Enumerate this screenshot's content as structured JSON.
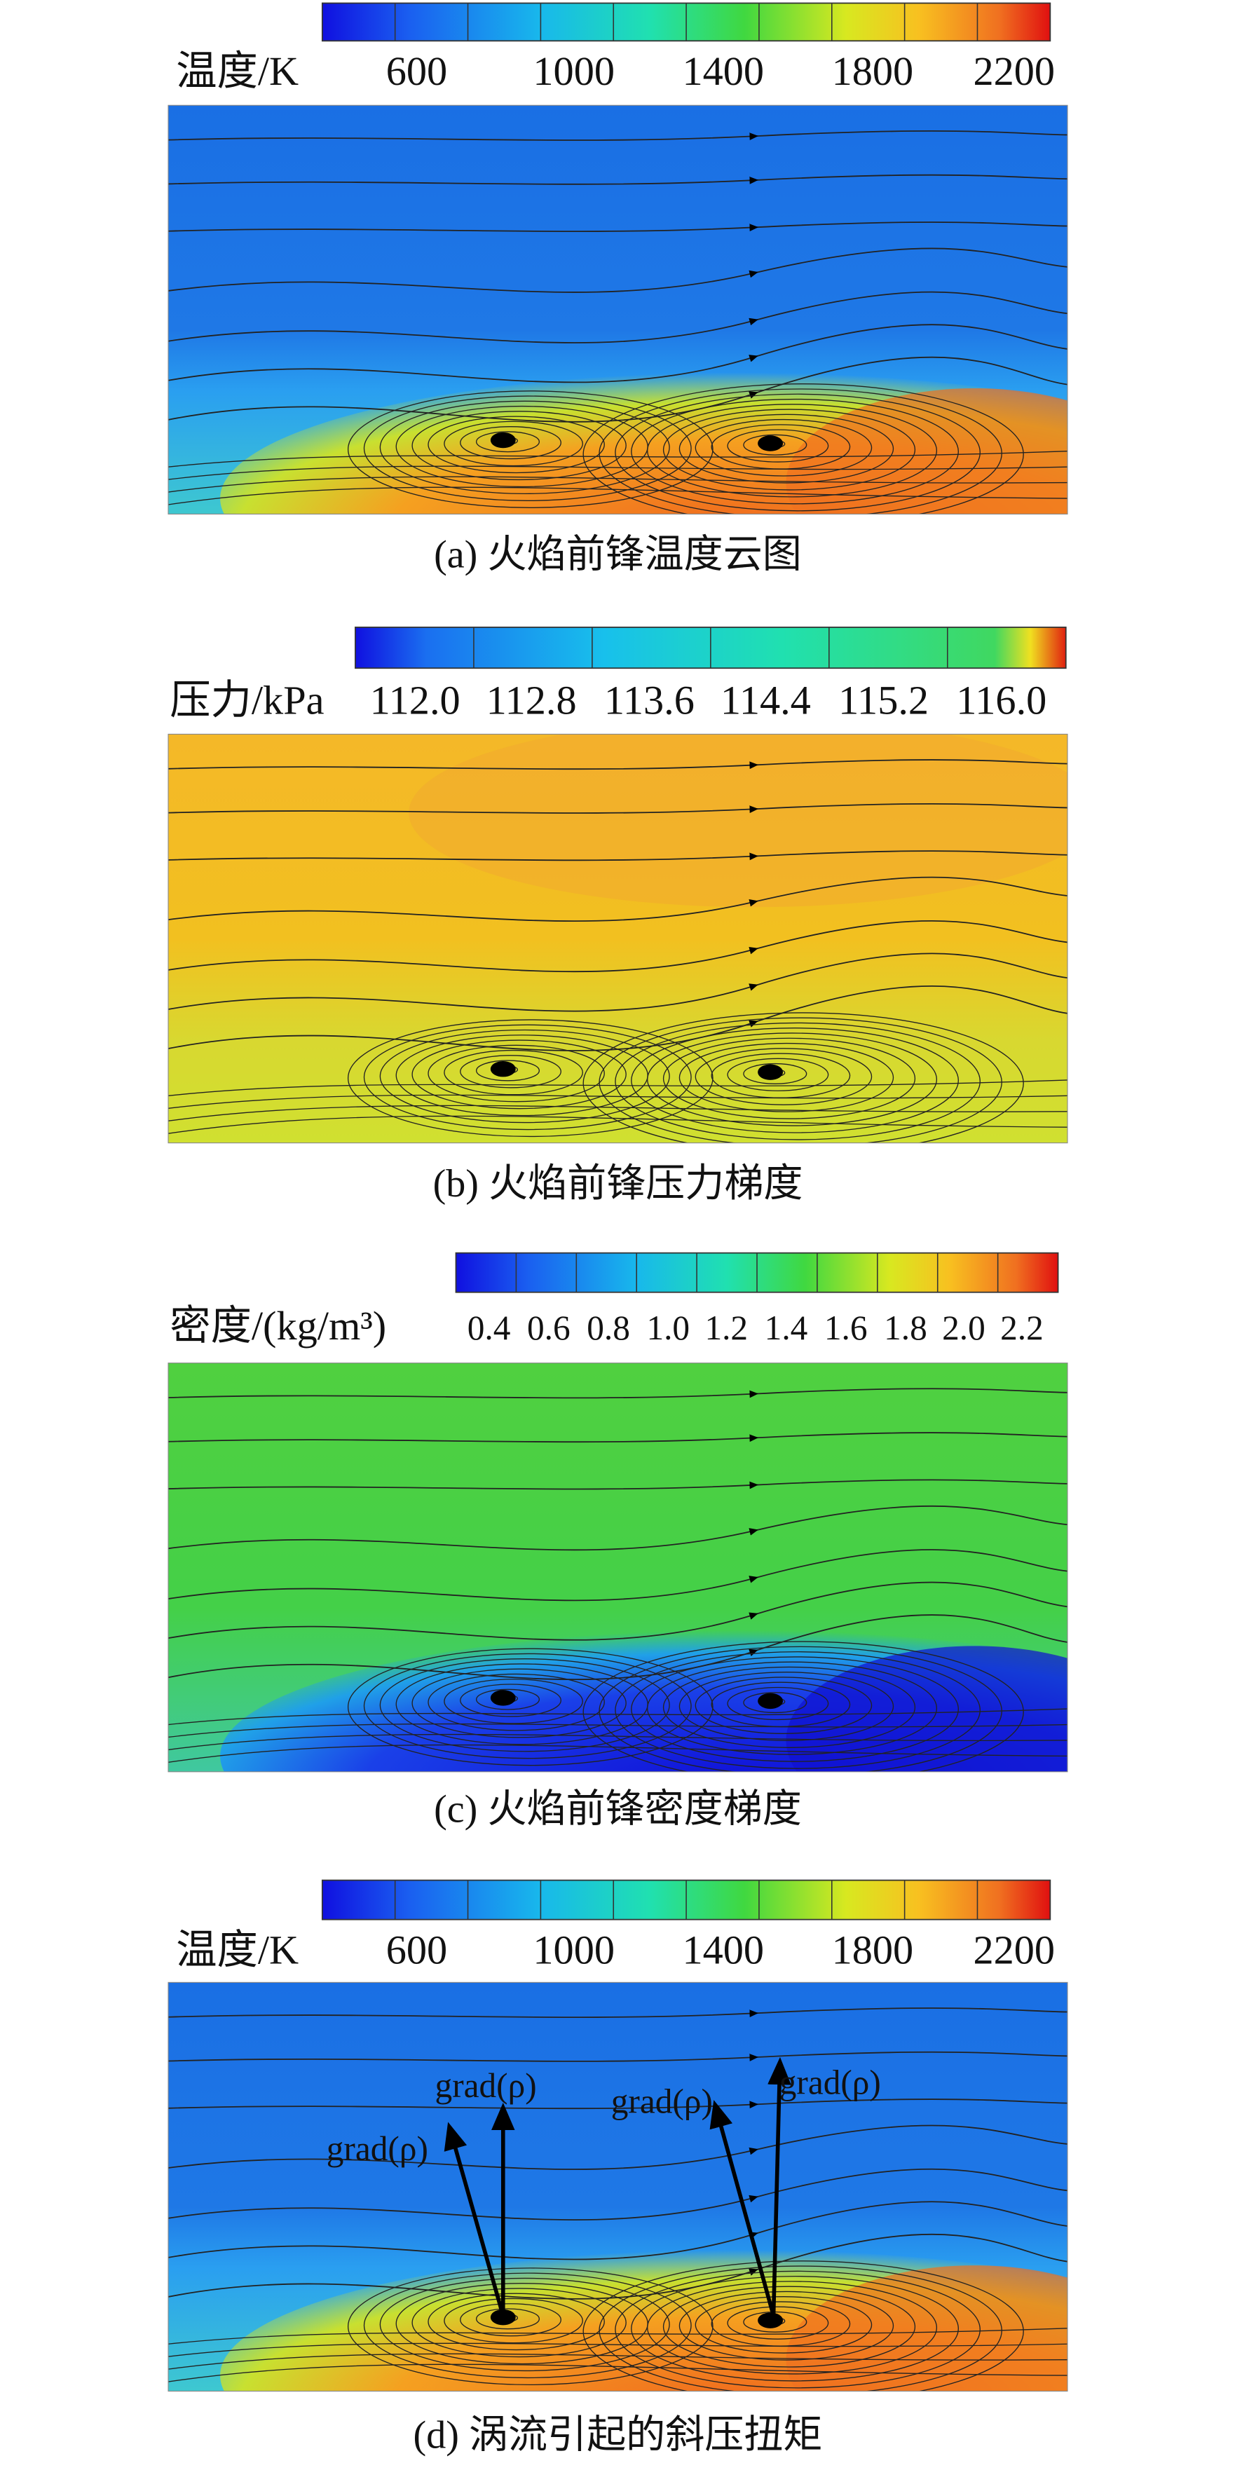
{
  "panels": [
    {
      "colorbar": {
        "label": "温度/K",
        "ticks": [
          "600",
          "1000",
          "1400",
          "1800",
          "2200"
        ]
      },
      "caption": "(a) 火焰前锋温度云图"
    },
    {
      "colorbar": {
        "label": "压力/kPa",
        "ticks": [
          "112.0",
          "112.8",
          "113.6",
          "114.4",
          "115.2",
          "116.0"
        ]
      },
      "caption": "(b) 火焰前锋压力梯度"
    },
    {
      "colorbar": {
        "label": "密度/(kg/m³)",
        "ticks": [
          "0.4",
          "0.6",
          "0.8",
          "1.0",
          "1.2",
          "1.4",
          "1.6",
          "1.8",
          "2.0",
          "2.2"
        ]
      },
      "caption": "(c) 火焰前锋密度梯度"
    },
    {
      "colorbar": {
        "label": "温度/K",
        "ticks": [
          "600",
          "1000",
          "1400",
          "1800",
          "2200"
        ]
      },
      "caption": "(d) 涡流引起的斜压扭矩",
      "annotations": [
        "grad(ρ)",
        "grad(ρ)",
        "grad(ρ)",
        "grad(ρ)"
      ]
    }
  ]
}
